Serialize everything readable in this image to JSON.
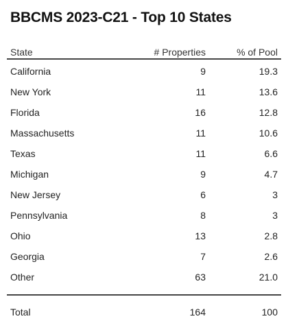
{
  "title": "BBCMS 2023-C21 - Top 10 States",
  "table": {
    "headers": {
      "state": "State",
      "properties": "# Properties",
      "pool": "% of Pool"
    },
    "rows": [
      {
        "state": "California",
        "properties": "9",
        "pool": "19.3"
      },
      {
        "state": "New York",
        "properties": "11",
        "pool": "13.6"
      },
      {
        "state": "Florida",
        "properties": "16",
        "pool": "12.8"
      },
      {
        "state": "Massachusetts",
        "properties": "11",
        "pool": "10.6"
      },
      {
        "state": "Texas",
        "properties": "11",
        "pool": "6.6"
      },
      {
        "state": "Michigan",
        "properties": "9",
        "pool": "4.7"
      },
      {
        "state": "New Jersey",
        "properties": "6",
        "pool": "3"
      },
      {
        "state": "Pennsylvania",
        "properties": "8",
        "pool": "3"
      },
      {
        "state": "Ohio",
        "properties": "13",
        "pool": "2.8"
      },
      {
        "state": "Georgia",
        "properties": "7",
        "pool": "2.6"
      },
      {
        "state": "Other",
        "properties": "63",
        "pool": "21.0"
      }
    ],
    "total": {
      "label": "Total",
      "properties": "164",
      "pool": "100"
    }
  }
}
